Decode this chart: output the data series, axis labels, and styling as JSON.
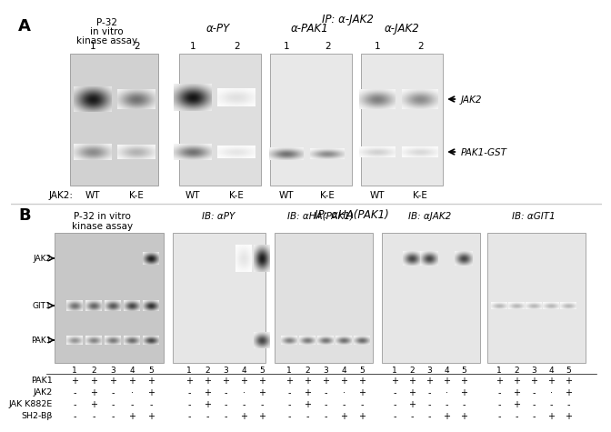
{
  "panel_A": {
    "title_ip": "IP: α-JAK2",
    "p32_label": [
      "P-32",
      "in vitro",
      "kinase assay"
    ],
    "blot_labels_A": [
      "α-PY",
      "α-PAK1",
      "α-JAK2"
    ],
    "jak2_labels": [
      "JAK2:",
      "WT",
      "K-E",
      "WT",
      "K-E",
      "WT",
      "K-E",
      "WT",
      "K-E"
    ],
    "arrow_labels_A": [
      "JAK2",
      "PAK1-GST"
    ]
  },
  "panel_B": {
    "title_ip": "IP: αHA(PAK1)",
    "p32_label": [
      "P-32 in vitro",
      "kinase assay"
    ],
    "blot_labels_B": [
      "IB: αPY",
      "IB: αHA(PAK1)",
      "IB: αJAK2",
      "IB: αGIT1"
    ],
    "band_labels_B": [
      "JAK2",
      "GIT1",
      "PAK1"
    ],
    "row_labels": [
      "PAK1",
      "JAK2",
      "JAK K882E",
      "SH2-Bβ"
    ],
    "row_data": [
      [
        "+",
        "+",
        "+",
        "+",
        "+"
      ],
      [
        "-",
        "+",
        "-",
        ".",
        "+"
      ],
      [
        "-",
        "+",
        "-",
        "-",
        "-"
      ],
      [
        "-",
        "-",
        "-",
        "+",
        "+"
      ]
    ]
  }
}
